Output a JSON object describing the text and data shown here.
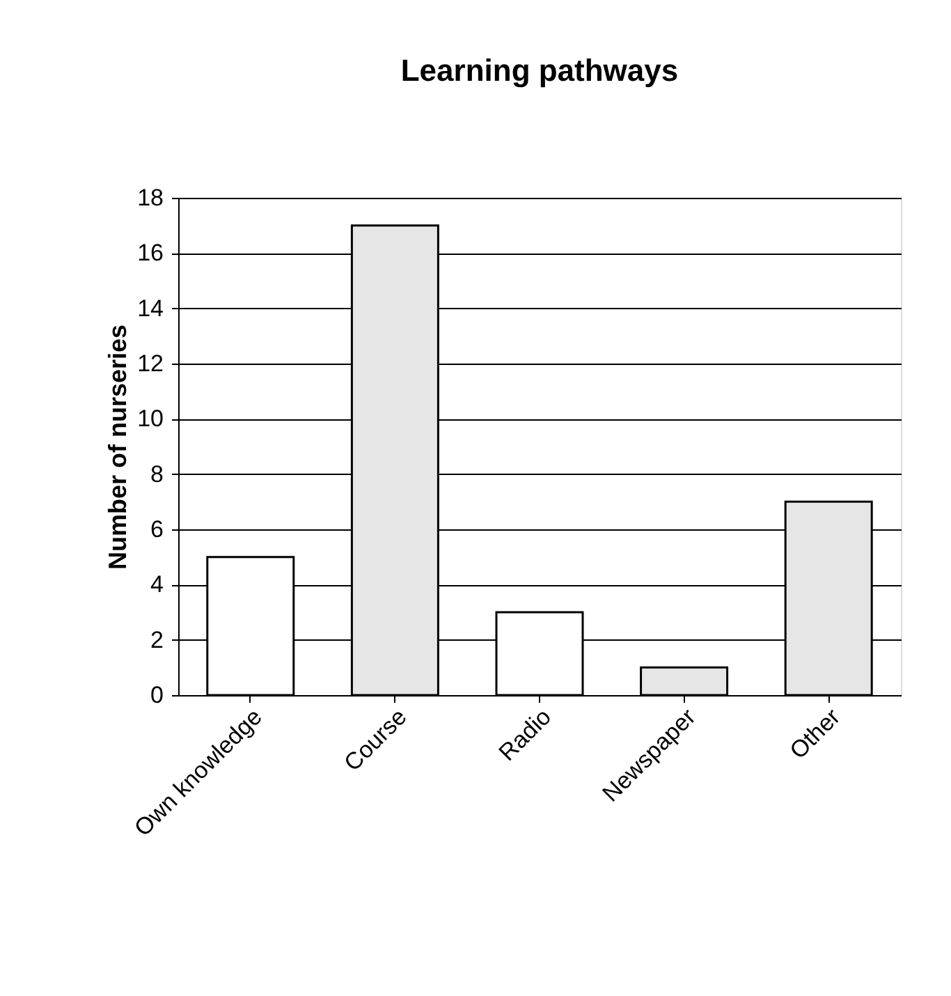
{
  "chart_data": {
    "type": "bar",
    "title": "Learning pathways",
    "ylabel": "Number of nurseries",
    "categories": [
      "Own knowledge",
      "Course",
      "Radio",
      "Newspaper",
      "Other"
    ],
    "values": [
      5,
      17,
      3,
      1,
      7
    ],
    "colors": [
      "#ffffff",
      "#e6e6e6",
      "#ffffff",
      "#e6e6e6",
      "#e6e6e6"
    ],
    "ylim": [
      0,
      18
    ],
    "yticks": [
      0,
      2,
      4,
      6,
      8,
      10,
      12,
      14,
      16,
      18
    ],
    "grid": "y"
  }
}
